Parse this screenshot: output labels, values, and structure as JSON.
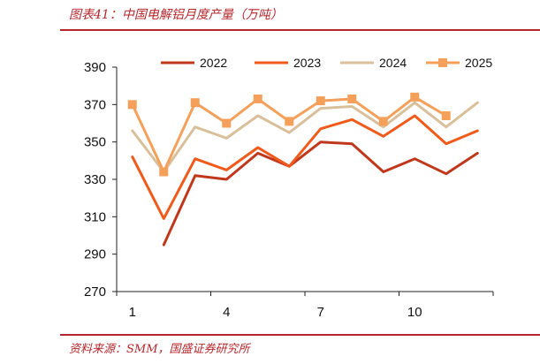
{
  "header": {
    "title": "图表41：中国电解铝月度产量（万吨）"
  },
  "footer": {
    "source": "资料来源：SMM，国盛证券研究所"
  },
  "chart_data": {
    "type": "line",
    "title": "图表41：中国电解铝月度产量（万吨）",
    "xlabel": "",
    "ylabel": "",
    "x": [
      1,
      2,
      3,
      4,
      5,
      6,
      7,
      8,
      9,
      10,
      11,
      12
    ],
    "x_tick_labels": [
      "1",
      "4",
      "7",
      "10"
    ],
    "x_tick_values": [
      1,
      4,
      7,
      10
    ],
    "ylim": [
      270,
      390
    ],
    "y_ticks": [
      270,
      290,
      310,
      330,
      350,
      370,
      390
    ],
    "grid": false,
    "legend_position": "top",
    "series": [
      {
        "name": "2022",
        "color": "#c0381b",
        "marker": "none",
        "values": [
          null,
          295,
          332,
          330,
          344,
          337,
          350,
          349,
          334,
          341,
          333,
          344
        ]
      },
      {
        "name": "2023",
        "color": "#f05a1a",
        "marker": "none",
        "values": [
          342,
          309,
          341,
          335,
          347,
          337,
          357,
          362,
          353,
          364,
          349,
          356
        ]
      },
      {
        "name": "2024",
        "color": "#d9bf9a",
        "marker": "none",
        "values": [
          356,
          334,
          358,
          352,
          364,
          355,
          368,
          369,
          358,
          371,
          358,
          371
        ]
      },
      {
        "name": "2025",
        "color": "#f5a05a",
        "marker": "square",
        "values": [
          370,
          334,
          371,
          360,
          373,
          361,
          372,
          373,
          361,
          374,
          364,
          null
        ]
      }
    ]
  }
}
